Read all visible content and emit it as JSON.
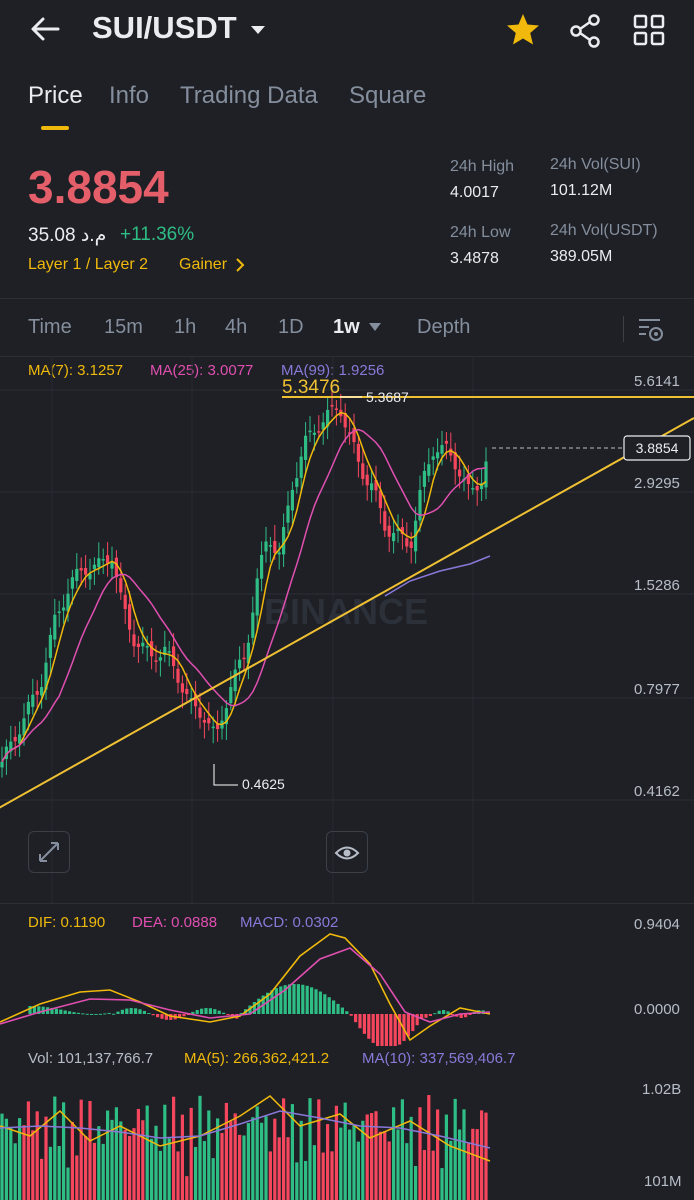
{
  "header": {
    "pair": "SUI/USDT",
    "icons": [
      "back-arrow-icon",
      "chevron-down-icon",
      "star-icon",
      "share-icon",
      "grid-icon"
    ],
    "star_color": "#f0b90b"
  },
  "tabs": [
    "Price",
    "Info",
    "Trading Data",
    "Square"
  ],
  "ticker": {
    "price": "3.8854",
    "fiat": "35.08 م.د",
    "change": "+11.36%",
    "tag1": "Layer 1 / Layer 2",
    "tag2": "Gainer",
    "high_label": "24h High",
    "high": "4.0017",
    "low_label": "24h Low",
    "low": "3.4878",
    "vol_sui_label": "24h Vol(SUI)",
    "vol_sui": "101.12M",
    "vol_usdt_label": "24h Vol(USDT)",
    "vol_usdt": "389.05M"
  },
  "timeframes": {
    "items": [
      "Time",
      "15m",
      "1h",
      "4h",
      "1D",
      "1w",
      "Depth"
    ],
    "selected": "1w"
  },
  "main_chart": {
    "ma7": "MA(7): 3.1257",
    "ma25": "MA(25): 3.0077",
    "ma99": "MA(99): 1.9256",
    "y_labels": [
      "5.6141",
      "2.9295",
      "1.5286",
      "0.7977",
      "0.4162"
    ],
    "current_price": "3.8854",
    "resistance_label": "5.3476",
    "high_marker": "5.3687",
    "low_marker": "0.4625",
    "watermark": "BINANCE",
    "colors": {
      "up": "#2ebd85",
      "down": "#f6465d",
      "ma7": "#f0b90b",
      "ma25": "#e04fb0",
      "ma99": "#8a78d8"
    }
  },
  "macd": {
    "dif": "DIF: 0.1190",
    "dea": "DEA: 0.0888",
    "macd": "MACD: 0.0302",
    "y_labels": [
      "0.9404",
      "0.0000"
    ]
  },
  "volume": {
    "vol": "Vol: 101,137,766.7",
    "ma5": "MA(5): 266,362,421.2",
    "ma10": "MA(10): 337,569,406.7",
    "y_labels": [
      "1.02B",
      "101M"
    ]
  }
}
